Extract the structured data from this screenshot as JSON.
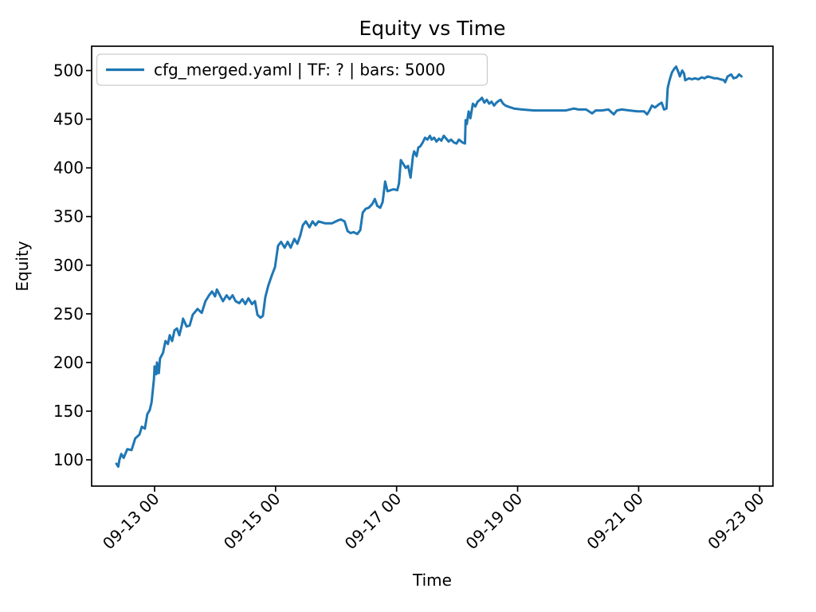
{
  "chart_data": {
    "type": "line",
    "title": "Equity vs Time",
    "xlabel": "Time",
    "ylabel": "Equity",
    "legend": {
      "label": "cfg_merged.yaml | TF: ? | bars: 5000",
      "position": "upper left",
      "line_color": "#1f77b4"
    },
    "grid": false,
    "x_unit": "days since 09-13 00:00",
    "xlim": [
      -1.04,
      10.22
    ],
    "ylim": [
      73,
      525
    ],
    "x_ticks": [
      {
        "pos": 0,
        "label": "09-13 00"
      },
      {
        "pos": 2,
        "label": "09-15 00"
      },
      {
        "pos": 4,
        "label": "09-17 00"
      },
      {
        "pos": 6,
        "label": "09-19 00"
      },
      {
        "pos": 8,
        "label": "09-21 00"
      },
      {
        "pos": 10,
        "label": "09-23 00"
      }
    ],
    "y_ticks": [
      100,
      150,
      200,
      250,
      300,
      350,
      400,
      450,
      500
    ],
    "series": [
      {
        "name": "cfg_merged.yaml | TF: ? | bars: 5000",
        "color": "#1f77b4",
        "linewidth": 3,
        "x": [
          -0.63,
          -0.6,
          -0.58,
          -0.55,
          -0.51,
          -0.45,
          -0.38,
          -0.32,
          -0.25,
          -0.21,
          -0.16,
          -0.12,
          -0.08,
          -0.05,
          -0.01,
          0.0,
          0.03,
          0.04,
          0.07,
          0.09,
          0.14,
          0.18,
          0.22,
          0.25,
          0.29,
          0.33,
          0.37,
          0.41,
          0.45,
          0.47,
          0.53,
          0.58,
          0.63,
          0.71,
          0.78,
          0.84,
          0.9,
          0.95,
          1.0,
          1.03,
          1.08,
          1.13,
          1.19,
          1.24,
          1.29,
          1.34,
          1.4,
          1.45,
          1.5,
          1.55,
          1.61,
          1.66,
          1.7,
          1.75,
          1.79,
          1.83,
          1.88,
          1.94,
          1.99,
          2.04,
          2.09,
          2.15,
          2.2,
          2.25,
          2.31,
          2.36,
          2.41,
          2.45,
          2.5,
          2.56,
          2.61,
          2.66,
          2.71,
          2.82,
          2.93,
          3.03,
          3.08,
          3.14,
          3.19,
          3.24,
          3.29,
          3.35,
          3.4,
          3.44,
          3.49,
          3.54,
          3.6,
          3.64,
          3.68,
          3.73,
          3.77,
          3.81,
          3.85,
          3.9,
          3.95,
          4.01,
          4.04,
          4.07,
          4.11,
          4.15,
          4.19,
          4.23,
          4.27,
          4.29,
          4.33,
          4.36,
          4.39,
          4.43,
          4.47,
          4.51,
          4.55,
          4.58,
          4.62,
          4.66,
          4.7,
          4.74,
          4.78,
          4.82,
          4.86,
          4.9,
          4.95,
          4.99,
          5.03,
          5.09,
          5.13,
          5.14,
          5.16,
          5.19,
          5.22,
          5.26,
          5.3,
          5.34,
          5.38,
          5.41,
          5.45,
          5.49,
          5.53,
          5.57,
          5.61,
          5.65,
          5.69,
          5.72,
          5.76,
          5.8,
          5.84,
          5.94,
          6.07,
          6.27,
          6.53,
          6.8,
          6.93,
          7.0,
          7.13,
          7.23,
          7.29,
          7.39,
          7.5,
          7.59,
          7.64,
          7.72,
          7.85,
          7.98,
          8.09,
          8.14,
          8.18,
          8.22,
          8.27,
          8.33,
          8.38,
          8.42,
          8.46,
          8.48,
          8.51,
          8.55,
          8.59,
          8.62,
          8.66,
          8.68,
          8.72,
          8.75,
          8.77,
          8.83,
          8.88,
          8.93,
          8.99,
          9.04,
          9.09,
          9.14,
          9.2,
          9.25,
          9.3,
          9.35,
          9.41,
          9.43,
          9.47,
          9.53,
          9.57,
          9.62,
          9.66,
          9.7
        ],
        "y": [
          96,
          93,
          100,
          106,
          102,
          111,
          110,
          122,
          126,
          134,
          132,
          147,
          151,
          159,
          183,
          196,
          188,
          200,
          189,
          204,
          210,
          222,
          219,
          228,
          222,
          233,
          235,
          228,
          238,
          245,
          237,
          238,
          249,
          255,
          251,
          263,
          269,
          273,
          268,
          275,
          269,
          263,
          269,
          265,
          269,
          263,
          261,
          265,
          260,
          266,
          260,
          263,
          249,
          246,
          248,
          267,
          279,
          290,
          298,
          320,
          324,
          318,
          324,
          318,
          327,
          322,
          331,
          341,
          345,
          339,
          345,
          341,
          345,
          343,
          343,
          346,
          347,
          345,
          335,
          333,
          334,
          332,
          336,
          354,
          358,
          359,
          363,
          368,
          361,
          359,
          365,
          386,
          376,
          377,
          378,
          377,
          384,
          408,
          404,
          400,
          402,
          390,
          412,
          417,
          412,
          421,
          422,
          426,
          431,
          429,
          433,
          429,
          431,
          427,
          430,
          428,
          433,
          430,
          427,
          429,
          426,
          425,
          429,
          426,
          425,
          449,
          445,
          458,
          451,
          466,
          463,
          468,
          470,
          472,
          467,
          470,
          466,
          468,
          464,
          467,
          469,
          470,
          466,
          464,
          463,
          461,
          460,
          459,
          459,
          459,
          461,
          460,
          460,
          456,
          459,
          459,
          460,
          455,
          459,
          460,
          459,
          458,
          458,
          455,
          459,
          464,
          462,
          465,
          467,
          460,
          461,
          482,
          490,
          498,
          502,
          504,
          498,
          494,
          500,
          497,
          490,
          492,
          491,
          492,
          491,
          493,
          492,
          494,
          493,
          492,
          492,
          491,
          490,
          488,
          494,
          496,
          492,
          493,
          496,
          494
        ]
      }
    ]
  }
}
